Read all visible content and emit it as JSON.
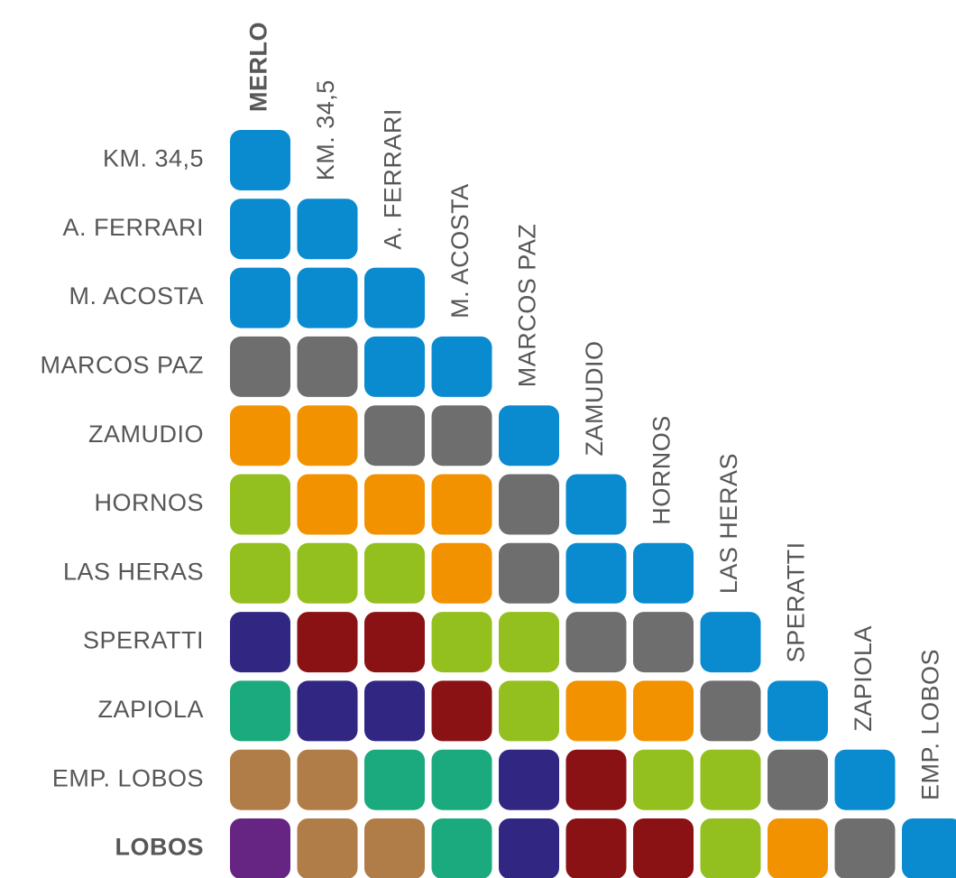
{
  "columns": [
    "MERLO",
    "KM. 34,5",
    "A. FERRARI",
    "M. ACOSTA",
    "MARCOS PAZ",
    "ZAMUDIO",
    "HORNOS",
    "LAS HERAS",
    "SPERATTI",
    "ZAPIOLA",
    "EMP. LOBOS"
  ],
  "rows": [
    "KM. 34,5",
    "A. FERRARI",
    "M. ACOSTA",
    "MARCOS PAZ",
    "ZAMUDIO",
    "HORNOS",
    "LAS HERAS",
    "SPERATTI",
    "ZAPIOLA",
    "EMP. LOBOS",
    "LOBOS"
  ],
  "cells": [
    [
      "#0a8bd0"
    ],
    [
      "#0a8bd0",
      "#0a8bd0"
    ],
    [
      "#0a8bd0",
      "#0a8bd0",
      "#0a8bd0"
    ],
    [
      "#6e6e6e",
      "#6e6e6e",
      "#0a8bd0",
      "#0a8bd0"
    ],
    [
      "#f39200",
      "#f39200",
      "#6e6e6e",
      "#6e6e6e",
      "#0a8bd0"
    ],
    [
      "#93c01f",
      "#f39200",
      "#f39200",
      "#f39200",
      "#6e6e6e",
      "#0a8bd0"
    ],
    [
      "#93c01f",
      "#93c01f",
      "#93c01f",
      "#f39200",
      "#6e6e6e",
      "#0a8bd0",
      "#0a8bd0"
    ],
    [
      "#312783",
      "#8b1214",
      "#8b1214",
      "#93c01f",
      "#93c01f",
      "#6e6e6e",
      "#6e6e6e",
      "#0a8bd0"
    ],
    [
      "#1ba97e",
      "#312783",
      "#312783",
      "#8b1214",
      "#93c01f",
      "#f39200",
      "#f39200",
      "#6e6e6e",
      "#0a8bd0"
    ],
    [
      "#b07d48",
      "#b07d48",
      "#1ba97e",
      "#1ba97e",
      "#312783",
      "#8b1214",
      "#93c01f",
      "#93c01f",
      "#6e6e6e",
      "#0a8bd0"
    ],
    [
      "#662483",
      "#b07d48",
      "#b07d48",
      "#1ba97e",
      "#312783",
      "#8b1214",
      "#8b1214",
      "#93c01f",
      "#f39200",
      "#6e6e6e",
      "#0a8bd0"
    ]
  ]
}
